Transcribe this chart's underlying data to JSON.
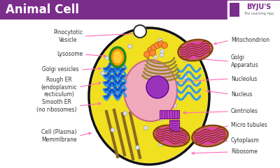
{
  "title": "Animal Cell",
  "title_bg": "#7B2D8B",
  "title_color": "#FFFFFF",
  "bg_color": "#FFFFFF",
  "cell_bg": "#F0E020",
  "cell_border": "#111111",
  "nucleus_color": "#F0AABB",
  "nucleus_border": "#CC6688",
  "nucleolus_color": "#9933BB",
  "byju_text": "BYJU'S",
  "byju_sub": "The Learning App"
}
